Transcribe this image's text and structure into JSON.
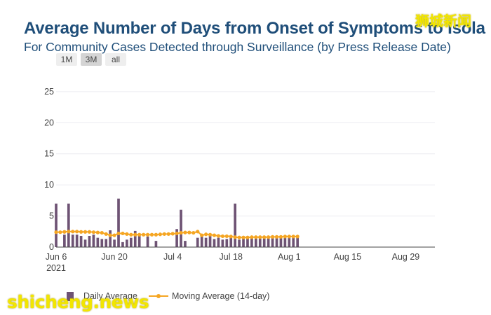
{
  "header": {
    "title": "Average Number of Days from Onset of Symptoms to Isola",
    "subtitle": "For Community Cases Detected through Surveillance (by Press Release Date)"
  },
  "range_selector": {
    "buttons": [
      "1M",
      "3M",
      "all"
    ],
    "active": "3M"
  },
  "watermarks": {
    "cn": "狮城新闻",
    "en": "shicheng.news"
  },
  "legend": {
    "bar_label": "Daily Average",
    "line_label": "Moving Average (14-day)"
  },
  "colors": {
    "bar": "#6e5374",
    "line": "#f5a623",
    "title": "#1f4e79",
    "grid": "#ececf0"
  },
  "chart_data": {
    "type": "bar",
    "x_axis": {
      "ticks": [
        "Jun 6",
        "Jun 20",
        "Jul 4",
        "Jul 18",
        "Aug 1",
        "Aug 15",
        "Aug 29"
      ],
      "year_label": "2021",
      "range_days": [
        0,
        91
      ]
    },
    "y_axis": {
      "ticks": [
        0,
        5,
        10,
        15,
        20,
        25
      ],
      "range": [
        0,
        26
      ]
    },
    "grid": true,
    "legend_position": "bottom",
    "series": [
      {
        "name": "Daily Average",
        "type": "bar",
        "x": [
          "Jun 6",
          "Jun 8",
          "Jun 9",
          "Jun 10",
          "Jun 11",
          "Jun 12",
          "Jun 13",
          "Jun 14",
          "Jun 15",
          "Jun 16",
          "Jun 17",
          "Jun 18",
          "Jun 19",
          "Jun 20",
          "Jun 21",
          "Jun 22",
          "Jun 23",
          "Jun 24",
          "Jun 25",
          "Jun 26",
          "Jun 28",
          "Jun 30",
          "Jul 5",
          "Jul 6",
          "Jul 7",
          "Jul 10",
          "Jul 11",
          "Jul 12",
          "Jul 13",
          "Jul 14",
          "Jul 15",
          "Jul 16",
          "Jul 17",
          "Jul 18",
          "Jul 19",
          "Jul 20",
          "Jul 21",
          "Jul 22",
          "Jul 23",
          "Jul 24",
          "Jul 25",
          "Jul 26",
          "Jul 27",
          "Jul 28",
          "Jul 29",
          "Jul 30",
          "Jul 31",
          "Aug 1",
          "Aug 2",
          "Aug 3"
        ],
        "values": [
          7,
          2,
          7,
          2,
          2,
          1.8,
          1.2,
          1.8,
          2,
          1.5,
          1.3,
          1.3,
          2.7,
          1.2,
          7.8,
          0.8,
          1.2,
          1.5,
          2.6,
          1.8,
          1.7,
          1,
          2.9,
          6,
          1,
          1.5,
          2,
          1.5,
          1.8,
          1.3,
          1.5,
          1.2,
          1.3,
          1.5,
          7,
          1.2,
          1.3,
          1.4,
          1.5,
          1.5,
          1.6,
          1.5,
          1.6,
          1.5,
          1.7,
          1.6,
          1.5,
          1.7,
          1.6,
          1.6
        ]
      },
      {
        "name": "Moving Average (14-day)",
        "type": "line",
        "x": [
          "Jun 6",
          "Jun 7",
          "Jun 8",
          "Jun 9",
          "Jun 10",
          "Jun 11",
          "Jun 12",
          "Jun 13",
          "Jun 14",
          "Jun 15",
          "Jun 16",
          "Jun 17",
          "Jun 18",
          "Jun 19",
          "Jun 20",
          "Jun 21",
          "Jun 22",
          "Jun 23",
          "Jun 24",
          "Jun 25",
          "Jun 26",
          "Jun 27",
          "Jun 28",
          "Jun 29",
          "Jun 30",
          "Jul 1",
          "Jul 2",
          "Jul 3",
          "Jul 4",
          "Jul 5",
          "Jul 6",
          "Jul 7",
          "Jul 8",
          "Jul 9",
          "Jul 10",
          "Jul 11",
          "Jul 12",
          "Jul 13",
          "Jul 14",
          "Jul 15",
          "Jul 16",
          "Jul 17",
          "Jul 18",
          "Jul 19",
          "Jul 20",
          "Jul 21",
          "Jul 22",
          "Jul 23",
          "Jul 24",
          "Jul 25",
          "Jul 26",
          "Jul 27",
          "Jul 28",
          "Jul 29",
          "Jul 30",
          "Jul 31",
          "Aug 1",
          "Aug 2",
          "Aug 3"
        ],
        "values": [
          2.4,
          2.4,
          2.45,
          2.5,
          2.5,
          2.5,
          2.45,
          2.45,
          2.45,
          2.4,
          2.35,
          2.3,
          2.1,
          1.9,
          1.9,
          2.2,
          2.2,
          2.1,
          2,
          2,
          2,
          2,
          2,
          2,
          2,
          2.05,
          2.1,
          2.1,
          2.15,
          2.2,
          2.3,
          2.35,
          2.35,
          2.3,
          2.5,
          1.9,
          2.05,
          2,
          1.9,
          1.8,
          1.75,
          1.75,
          1.7,
          1.6,
          1.55,
          1.55,
          1.55,
          1.6,
          1.6,
          1.6,
          1.6,
          1.6,
          1.65,
          1.65,
          1.65,
          1.7,
          1.7,
          1.7,
          1.7
        ]
      }
    ]
  }
}
